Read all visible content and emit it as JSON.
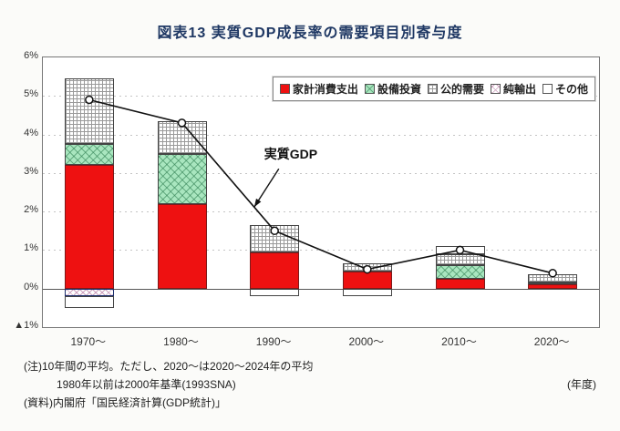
{
  "title": "図表13 実質GDP成長率の需要項目別寄与度",
  "colors": {
    "title": "#1f3864",
    "household": "#ee1111",
    "capex_green": "#a9e6bf",
    "line": "#111111"
  },
  "chart_data": {
    "type": "bar",
    "subtype": "stacked-bar-with-line",
    "categories": [
      "1970～",
      "1980～",
      "1990～",
      "2000～",
      "2010～",
      "2020～"
    ],
    "series": [
      {
        "name": "家計消費支出",
        "style": "red",
        "values": [
          3.2,
          2.2,
          0.95,
          0.45,
          0.25,
          0.1
        ]
      },
      {
        "name": "設備投資",
        "style": "green",
        "values": [
          0.55,
          1.3,
          0,
          0,
          0.35,
          0.05
        ]
      },
      {
        "name": "公的需要",
        "style": "grid",
        "values": [
          1.7,
          0.85,
          0.7,
          0.2,
          0.3,
          0.22
        ]
      },
      {
        "name": "純輸出",
        "style": "diag",
        "values": [
          -0.2,
          0,
          0,
          0,
          0,
          0
        ]
      },
      {
        "name": "その他",
        "style": "white",
        "values": [
          -0.3,
          0,
          -0.2,
          -0.2,
          0.2,
          0
        ]
      }
    ],
    "line_series": {
      "name": "実質GDP",
      "values": [
        4.9,
        4.3,
        1.5,
        0.5,
        1.0,
        0.4
      ]
    },
    "annotation": "実質GDP",
    "ylim": [
      -1,
      6
    ],
    "yticks": [
      {
        "v": 6,
        "label": "6%"
      },
      {
        "v": 5,
        "label": "5%"
      },
      {
        "v": 4,
        "label": "4%"
      },
      {
        "v": 3,
        "label": "3%"
      },
      {
        "v": 2,
        "label": "2%"
      },
      {
        "v": 1,
        "label": "1%"
      },
      {
        "v": 0,
        "label": "0%"
      },
      {
        "v": -1,
        "label": "▲1%"
      }
    ],
    "grid": true,
    "legend_position": "top-right-inside"
  },
  "footnotes": {
    "note1": "(注)10年間の平均。ただし、2020～は2020～2024年の平均",
    "note2": "1980年以前は2000年基準(1993SNA)",
    "source": "(資料)内閣府「国民経済計算(GDP統計)」",
    "unit": "(年度)"
  }
}
